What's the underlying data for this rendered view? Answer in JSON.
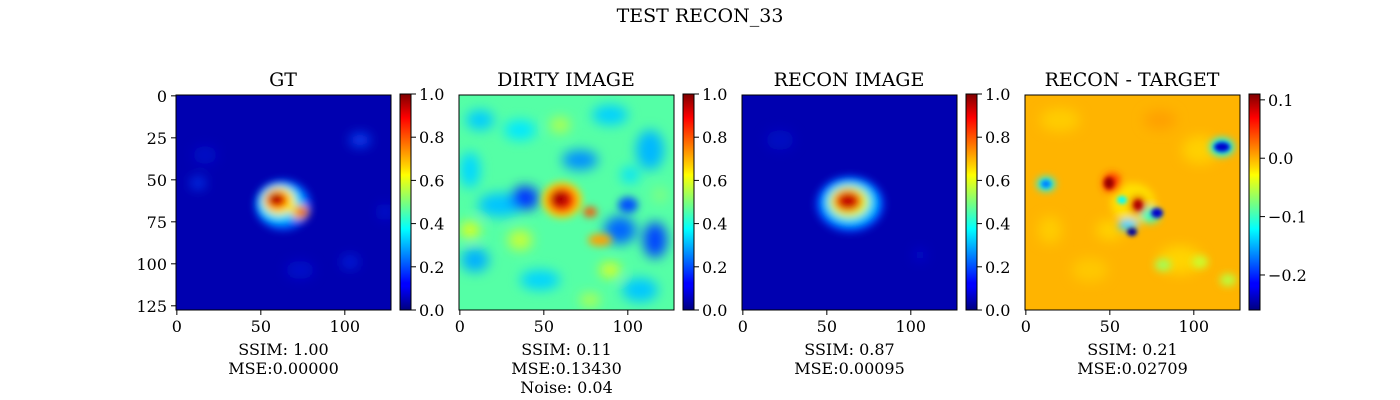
{
  "figure": {
    "title": "TEST RECON_33"
  },
  "chart_data": [
    {
      "type": "heatmap",
      "title": "GT",
      "colormap": "jet",
      "image_size": [
        128,
        128
      ],
      "xticks": [
        0,
        50,
        100
      ],
      "yticks": [
        0,
        25,
        50,
        75,
        100,
        125
      ],
      "colorbar": {
        "vmin": 0.0,
        "vmax": 1.0,
        "ticks": [
          0.0,
          0.2,
          0.4,
          0.6,
          0.8,
          1.0
        ],
        "tick_labels": [
          "0.0",
          "0.2",
          "0.4",
          "0.6",
          "0.8",
          "1.0"
        ]
      },
      "xlabel_lines": [
        "SSIM: 1.00",
        "MSE:0.00000"
      ],
      "stats": {
        "ssim": 1.0,
        "mse": 0.0
      }
    },
    {
      "type": "heatmap",
      "title": "DIRTY IMAGE",
      "colormap": "jet",
      "image_size": [
        128,
        128
      ],
      "xticks": [
        0,
        50,
        100
      ],
      "colorbar": {
        "vmin": 0.0,
        "vmax": 1.0,
        "ticks": [
          0.0,
          0.2,
          0.4,
          0.6,
          0.8,
          1.0
        ],
        "tick_labels": [
          "0.0",
          "0.2",
          "0.4",
          "0.6",
          "0.8",
          "1.0"
        ]
      },
      "xlabel_lines": [
        "SSIM: 0.11",
        "MSE:0.13430",
        "Noise: 0.04"
      ],
      "stats": {
        "ssim": 0.11,
        "mse": 0.1343,
        "noise": 0.04
      }
    },
    {
      "type": "heatmap",
      "title": "RECON IMAGE",
      "colormap": "jet",
      "image_size": [
        128,
        128
      ],
      "xticks": [
        0,
        50,
        100
      ],
      "colorbar": {
        "vmin": 0.0,
        "vmax": 1.0,
        "ticks": [
          0.0,
          0.2,
          0.4,
          0.6,
          0.8,
          1.0
        ],
        "tick_labels": [
          "0.0",
          "0.2",
          "0.4",
          "0.6",
          "0.8",
          "1.0"
        ]
      },
      "xlabel_lines": [
        "SSIM: 0.87",
        "MSE:0.00095"
      ],
      "stats": {
        "ssim": 0.87,
        "mse": 0.00095
      }
    },
    {
      "type": "heatmap",
      "title": "RECON - TARGET",
      "colormap": "jet",
      "image_size": [
        128,
        128
      ],
      "xticks": [
        0,
        50,
        100
      ],
      "colorbar": {
        "vmin": -0.26,
        "vmax": 0.11,
        "ticks": [
          0.1,
          0.0,
          -0.1,
          -0.2
        ],
        "tick_labels": [
          "0.1",
          "0.0",
          "−0.1",
          "−0.2"
        ]
      },
      "xlabel_lines": [
        "SSIM: 0.21",
        "MSE:0.02709"
      ],
      "stats": {
        "ssim": 0.21,
        "mse": 0.02709
      }
    }
  ]
}
